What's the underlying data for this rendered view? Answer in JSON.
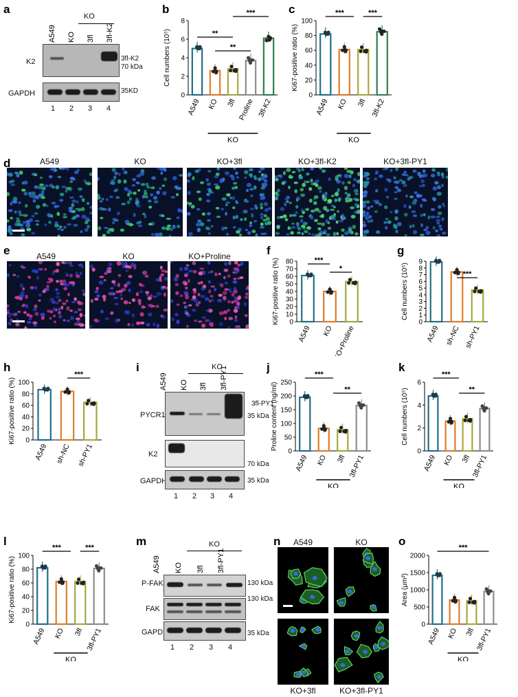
{
  "panel_labels": [
    "a",
    "b",
    "c",
    "d",
    "e",
    "f",
    "g",
    "h",
    "i",
    "j",
    "k",
    "l",
    "m",
    "n",
    "o"
  ],
  "blot_a": {
    "lanes": [
      "A549",
      "KO",
      "3fl",
      "3fl-K2"
    ],
    "group_label": "KO",
    "rows": [
      "K2",
      "GAPDH"
    ],
    "markers": [
      "3fl-K2",
      "70 kDa",
      "35KD"
    ],
    "lane_numbers": [
      "1",
      "2",
      "3",
      "4"
    ]
  },
  "blot_i": {
    "lanes": [
      "A549",
      "KO",
      "3fl",
      "3fl-PY1"
    ],
    "group_label": "KO",
    "rows": [
      "PYCR1",
      "K2",
      "GAPDH"
    ],
    "markers": [
      "3fl-PY1",
      "35 kDa",
      "70 kDa",
      "35 kDa"
    ],
    "lane_numbers": [
      "1",
      "2",
      "3",
      "4"
    ]
  },
  "blot_m": {
    "lanes": [
      "A549",
      "KO",
      "3fl",
      "3fl-PY1"
    ],
    "group_label": "KO",
    "rows": [
      "P-FAK",
      "FAK",
      "GAPDH"
    ],
    "markers": [
      "130 kDa",
      "130 kDa",
      "35 kDa"
    ],
    "lane_numbers": [
      "1",
      "2",
      "3",
      "4"
    ]
  },
  "micro_d": [
    "A549",
    "KO",
    "KO+3fl",
    "KO+3fl-K2",
    "KO+3fl-PY1"
  ],
  "micro_e": [
    "A549",
    "KO",
    "KO+Proline"
  ],
  "micro_n": [
    "A549",
    "KO",
    "KO+3fl",
    "KO+3fl-PY1"
  ],
  "colors": {
    "teal": "#1f6f86",
    "orange": "#e07b27",
    "olive": "#a6a83a",
    "gray": "#8c8c8c",
    "green": "#2e7d4e"
  },
  "chart_data": [
    {
      "panel": "b",
      "type": "bar",
      "categories": [
        "A549",
        "KO",
        "3fl",
        "Proline",
        "3fl-K2"
      ],
      "values": [
        5.0,
        2.6,
        2.8,
        3.7,
        6.1
      ],
      "ylabel": "Cell numbers (10⁵)",
      "ylim": [
        0,
        8
      ],
      "yticks": [
        0,
        2,
        4,
        6,
        8
      ],
      "group_label": "KO",
      "group_span": [
        1,
        4
      ],
      "significance": [
        "**",
        "***",
        "**"
      ]
    },
    {
      "panel": "c",
      "type": "bar",
      "categories": [
        "A549",
        "KO",
        "3fl",
        "3fl-K2"
      ],
      "values": [
        82,
        61,
        61,
        85
      ],
      "ylabel": "Ki67-positive ratio (%)",
      "ylim": [
        0,
        100
      ],
      "yticks": [
        0,
        20,
        40,
        60,
        80,
        100
      ],
      "group_label": "KO",
      "group_span": [
        1,
        3
      ],
      "significance": [
        "***",
        "***"
      ]
    },
    {
      "panel": "f",
      "type": "bar",
      "categories": [
        "A549",
        "KO",
        "KO+Proline"
      ],
      "values": [
        61,
        40,
        53
      ],
      "ylabel": "Ki67-positive ratio (%)",
      "ylim": [
        0,
        80
      ],
      "yticks": [
        0,
        10,
        20,
        30,
        40,
        50,
        60,
        70,
        80
      ],
      "significance": [
        "***",
        "*"
      ]
    },
    {
      "panel": "g",
      "type": "bar",
      "categories": [
        "A549",
        "sh-NC",
        "sh-PY1"
      ],
      "values": [
        8.9,
        7.4,
        4.7
      ],
      "ylabel": "Cell numbers (10⁵)",
      "ylim": [
        0,
        9
      ],
      "yticks": [
        0,
        1,
        2,
        3,
        4,
        5,
        6,
        7,
        8,
        9
      ],
      "significance": [
        "***"
      ]
    },
    {
      "panel": "h",
      "type": "bar",
      "categories": [
        "A549",
        "sh-NC",
        "sh-PY1"
      ],
      "values": [
        87,
        84,
        65
      ],
      "ylabel": "Ki67-positive ratio (%)",
      "ylim": [
        0,
        100
      ],
      "yticks": [
        0,
        20,
        40,
        60,
        80,
        100
      ],
      "significance": [
        "***"
      ]
    },
    {
      "panel": "j",
      "type": "bar",
      "categories": [
        "A549",
        "KO",
        "3fl",
        "3fl-PY1"
      ],
      "values": [
        195,
        82,
        77,
        165
      ],
      "ylabel": "Proline content (ng/ml)",
      "ylim": [
        0,
        250
      ],
      "yticks": [
        0,
        50,
        100,
        150,
        200,
        250
      ],
      "group_label": "KO",
      "group_span": [
        1,
        3
      ],
      "significance": [
        "***",
        "**"
      ]
    },
    {
      "panel": "k",
      "type": "bar",
      "categories": [
        "A549",
        "KO",
        "3fl",
        "3fl-PY1"
      ],
      "values": [
        4.8,
        2.6,
        2.8,
        3.7
      ],
      "ylabel": "Cell numbers (10⁵)",
      "ylim": [
        0,
        6
      ],
      "yticks": [
        0,
        2,
        4,
        6
      ],
      "group_label": "KO",
      "group_span": [
        1,
        3
      ],
      "significance": [
        "***",
        "**"
      ]
    },
    {
      "panel": "l",
      "type": "bar",
      "categories": [
        "A549",
        "KO",
        "3fl",
        "3fl-PY1"
      ],
      "values": [
        82,
        62,
        62,
        81
      ],
      "ylabel": "Ki67-positive ratio (%)",
      "ylim": [
        0,
        100
      ],
      "yticks": [
        0,
        20,
        40,
        60,
        80,
        100
      ],
      "group_label": "KO",
      "group_span": [
        1,
        3
      ],
      "significance": [
        "***",
        "***"
      ]
    },
    {
      "panel": "o",
      "type": "bar",
      "categories": [
        "A549",
        "KO",
        "3fl",
        "3fl-PY1"
      ],
      "values": [
        1420,
        700,
        680,
        950
      ],
      "ylabel": "Area (μm²)",
      "ylim": [
        0,
        2000
      ],
      "yticks": [
        0,
        500,
        1000,
        1500,
        2000
      ],
      "group_label": "KO",
      "group_span": [
        1,
        3
      ],
      "significance": [
        "***"
      ]
    }
  ]
}
